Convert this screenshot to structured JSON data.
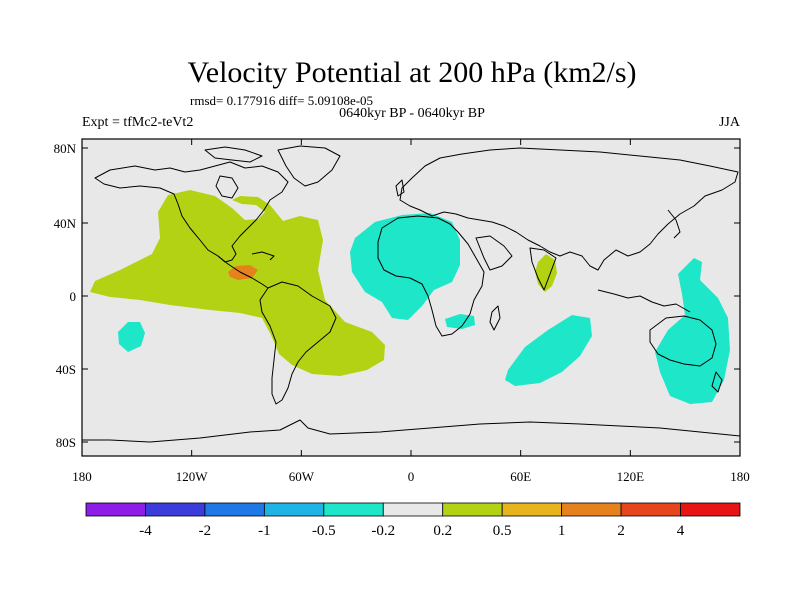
{
  "title": "Velocity Potential at 200 hPa (km2/s)",
  "stats_line": "rmsd= 0.177916 diff= 5.09108e-05",
  "period_line": "0640kyr BP - 0640kyr BP",
  "experiment_label": "Expt = tfMc2-teVt2",
  "season_label": "JJA",
  "lat_ticks": [
    "80N",
    "40N",
    "0",
    "40S",
    "80S"
  ],
  "lon_ticks": [
    "180",
    "120W",
    "60W",
    "0",
    "60E",
    "120E",
    "180"
  ],
  "colorbar": {
    "labels": [
      "-4",
      "-2",
      "-1",
      "-0.5",
      "-0.2",
      "0.2",
      "0.5",
      "1",
      "2",
      "4"
    ],
    "colors": [
      "#8c1ee6",
      "#3c3cdc",
      "#1e78e6",
      "#1eb4e6",
      "#1ee6c8",
      "#e8e8e8",
      "#b4d214",
      "#e6b41e",
      "#e6821e",
      "#e6461e",
      "#e61414"
    ]
  },
  "map_colors": {
    "background": "#e8e8e8",
    "positive_weak": "#b4d214",
    "negative_weak": "#1ee6c8",
    "positive_mid": "#e6821e",
    "coastline": "#000000"
  }
}
